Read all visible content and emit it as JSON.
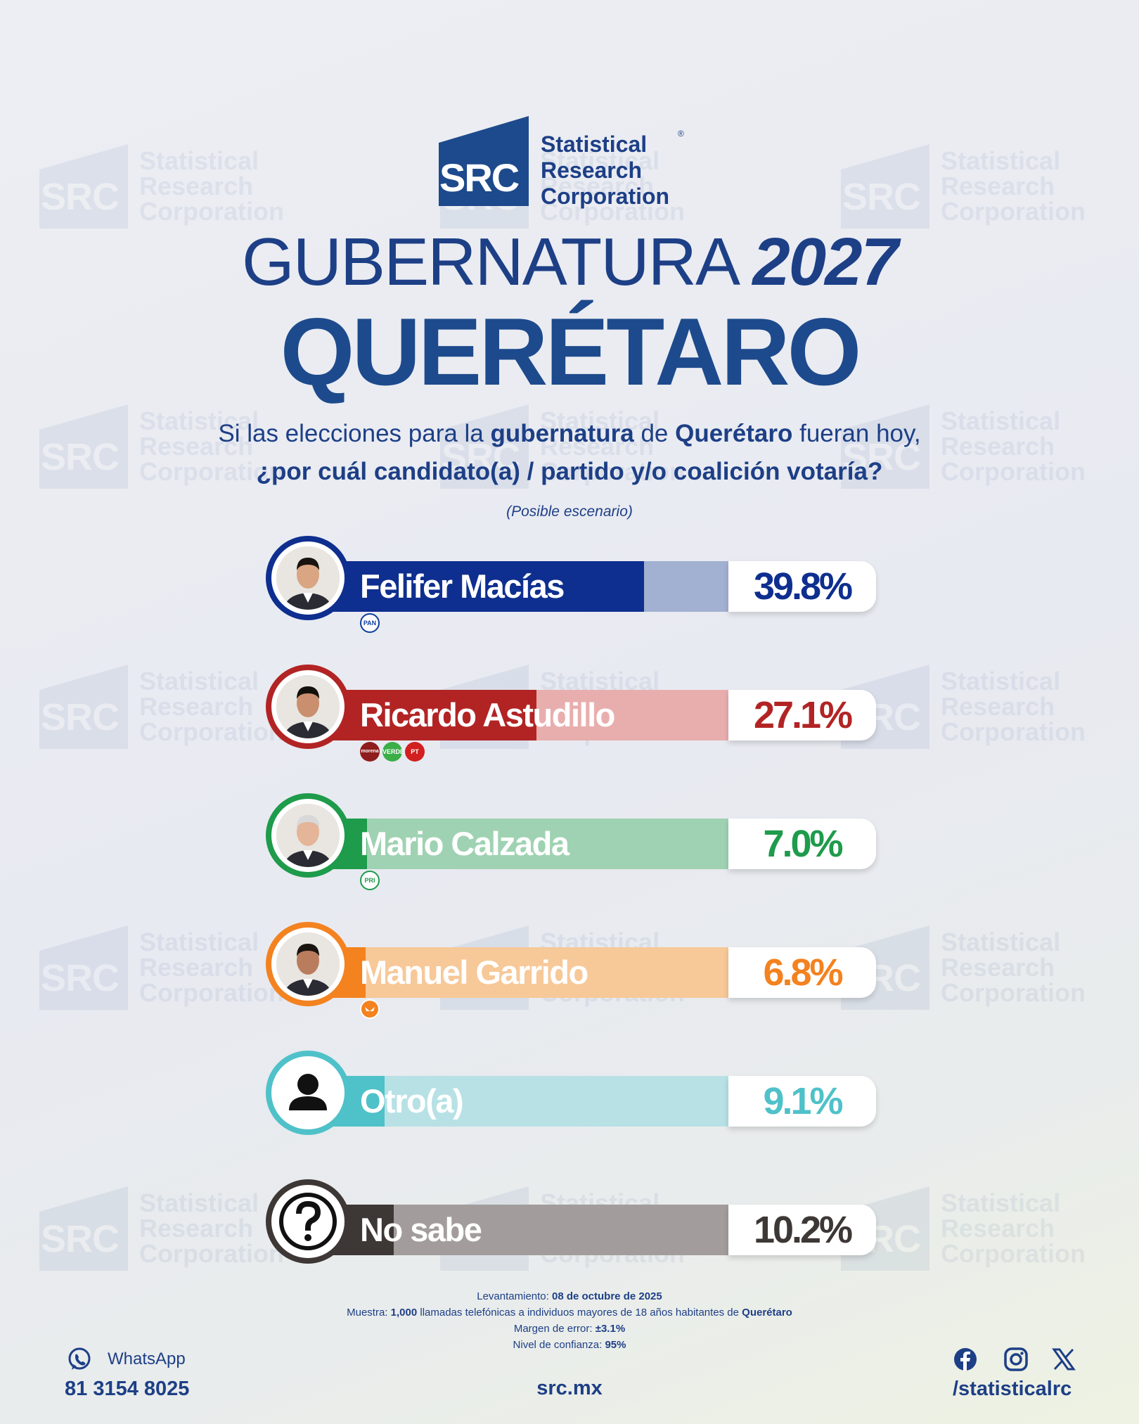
{
  "brand": {
    "mark": "SRC",
    "name_lines": [
      "Statistical",
      "Research",
      "Corporation"
    ],
    "registered": "®"
  },
  "title": {
    "line1": "GUBERNATURA",
    "year": "2027",
    "line2": "QUERÉTARO"
  },
  "question": {
    "p1": "Si las elecciones para la ",
    "b1": "gubernatura",
    "p2": " de ",
    "b2": "Querétaro",
    "p3": " fueran hoy,",
    "line2": "¿por cuál candidato(a) / partido y/o coalición votaría?",
    "scenario": "(Posible escenario)"
  },
  "chart_data": {
    "type": "bar",
    "categories": [
      "Felifer Macías",
      "Ricardo Astudillo",
      "Mario Calzada",
      "Manuel Garrido",
      "Otro(a)",
      "No sabe"
    ],
    "values": [
      39.8,
      27.1,
      7.0,
      6.8,
      9.1,
      10.2
    ],
    "labels": [
      "39.8%",
      "27.1%",
      "7.0%",
      "6.8%",
      "9.1%",
      "10.2%"
    ],
    "unit": "%",
    "colors": [
      "#0e2f8f",
      "#b22424",
      "#1e9b4b",
      "#f3821f",
      "#4fc1c9",
      "#3d3735"
    ],
    "light_colors": [
      "#a2b0d1",
      "#e8aeae",
      "#9fd2b2",
      "#f7c898",
      "#b7e1e5",
      "#a29d9c"
    ],
    "party_logos": [
      [
        "PAN"
      ],
      [
        "morena",
        "VERDE",
        "PT"
      ],
      [
        "PRI"
      ],
      [
        "MC"
      ],
      [],
      []
    ]
  },
  "footer": {
    "levantamiento_label": "Levantamiento: ",
    "levantamiento": "08 de octubre de 2025",
    "muestra_label": "Muestra: ",
    "muestra_n": "1,000",
    "muestra_text": " llamadas telefónicas a individuos mayores de 18 años habitantes de ",
    "muestra_place": "Querétaro",
    "margen_label": "Margen de error: ",
    "margen": "±3.1%",
    "nivel_label": "Nivel de confianza: ",
    "nivel": "95%",
    "whatsapp_label": "WhatsApp",
    "phone": "81 3154 8025",
    "site": "src.mx",
    "handle": "/statisticalrc",
    "icons": [
      "whatsapp-icon",
      "facebook-icon",
      "instagram-icon",
      "x-icon"
    ]
  }
}
